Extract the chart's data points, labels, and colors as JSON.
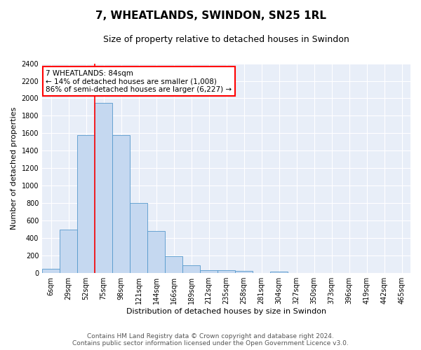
{
  "title": "7, WHEATLANDS, SWINDON, SN25 1RL",
  "subtitle": "Size of property relative to detached houses in Swindon",
  "xlabel": "Distribution of detached houses by size in Swindon",
  "ylabel": "Number of detached properties",
  "bar_categories": [
    "6sqm",
    "29sqm",
    "52sqm",
    "75sqm",
    "98sqm",
    "121sqm",
    "144sqm",
    "166sqm",
    "189sqm",
    "212sqm",
    "235sqm",
    "258sqm",
    "281sqm",
    "304sqm",
    "327sqm",
    "350sqm",
    "373sqm",
    "396sqm",
    "419sqm",
    "442sqm",
    "465sqm"
  ],
  "bar_values": [
    50,
    500,
    1580,
    1950,
    1580,
    800,
    480,
    195,
    90,
    35,
    30,
    25,
    0,
    20,
    0,
    0,
    0,
    0,
    0,
    0,
    0
  ],
  "bar_color": "#c5d8f0",
  "bar_edge_color": "#5599cc",
  "vline_x_index": 3,
  "vline_color": "red",
  "annotation_text_line1": "7 WHEATLANDS: 84sqm",
  "annotation_text_line2": "← 14% of detached houses are smaller (1,008)",
  "annotation_text_line3": "86% of semi-detached houses are larger (6,227) →",
  "annotation_box_color": "white",
  "annotation_box_edge_color": "red",
  "ylim": [
    0,
    2400
  ],
  "yticks": [
    0,
    200,
    400,
    600,
    800,
    1000,
    1200,
    1400,
    1600,
    1800,
    2000,
    2200,
    2400
  ],
  "footer_line1": "Contains HM Land Registry data © Crown copyright and database right 2024.",
  "footer_line2": "Contains public sector information licensed under the Open Government Licence v3.0.",
  "background_color": "#e8eef8",
  "grid_color": "white",
  "title_fontsize": 11,
  "subtitle_fontsize": 9,
  "axis_label_fontsize": 8,
  "tick_fontsize": 7,
  "annotation_fontsize": 7.5,
  "footer_fontsize": 6.5
}
